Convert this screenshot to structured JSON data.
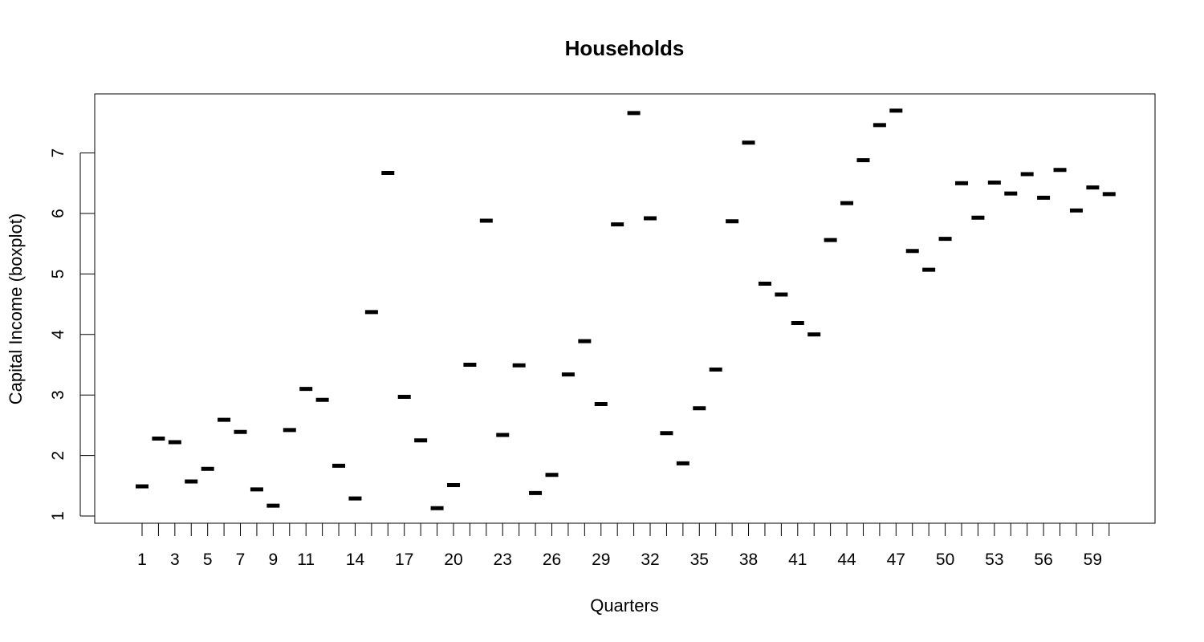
{
  "chart_data": {
    "type": "boxplot",
    "title": "Households",
    "xlabel": "Quarters",
    "ylabel": "Capital Income (boxplot)",
    "ylim": [
      0.9,
      7.9
    ],
    "y_ticks": [
      1,
      2,
      3,
      4,
      5,
      6,
      7
    ],
    "x_tick_labels_shown": [
      1,
      3,
      5,
      7,
      9,
      11,
      14,
      17,
      20,
      23,
      26,
      29,
      32,
      35,
      38,
      41,
      44,
      47,
      50,
      53,
      56,
      59
    ],
    "grid": false,
    "legend": "none",
    "categories": [
      1,
      2,
      3,
      4,
      5,
      6,
      7,
      8,
      9,
      10,
      11,
      12,
      13,
      14,
      15,
      16,
      17,
      18,
      19,
      20,
      21,
      22,
      23,
      24,
      25,
      26,
      27,
      28,
      29,
      30,
      31,
      32,
      33,
      34,
      35,
      36,
      37,
      38,
      39,
      40,
      41,
      42,
      43,
      44,
      45,
      46,
      47,
      48,
      49,
      50,
      51,
      52,
      53,
      54,
      55,
      56,
      57,
      58,
      59,
      60
    ],
    "values": [
      1.49,
      2.28,
      2.22,
      1.57,
      1.78,
      2.59,
      2.39,
      1.44,
      1.17,
      2.42,
      3.1,
      2.92,
      1.83,
      1.29,
      4.37,
      6.67,
      2.97,
      2.25,
      1.13,
      1.51,
      3.5,
      5.88,
      2.34,
      3.49,
      1.38,
      1.68,
      3.34,
      3.89,
      2.85,
      5.82,
      7.66,
      5.92,
      2.37,
      1.87,
      2.78,
      3.42,
      5.87,
      7.17,
      4.84,
      4.66,
      4.19,
      4.0,
      5.56,
      6.17,
      6.88,
      7.46,
      7.7,
      5.38,
      5.07,
      5.58,
      6.5,
      5.93,
      6.51,
      6.33,
      6.65,
      6.26,
      6.72,
      6.05,
      6.43,
      6.32
    ],
    "mark_color": "#000000"
  }
}
